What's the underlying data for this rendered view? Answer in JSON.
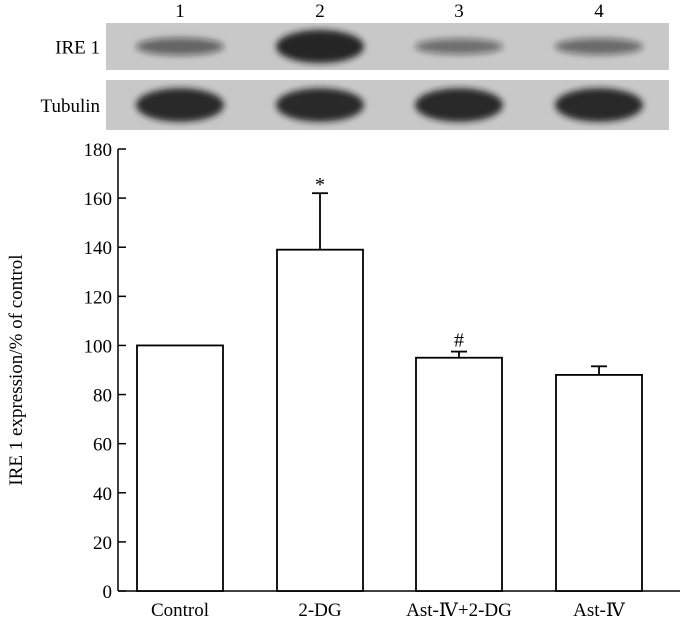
{
  "blot": {
    "lanes": [
      "1",
      "2",
      "3",
      "4"
    ],
    "rows": [
      {
        "label": "IRE 1",
        "band_intensity": [
          0.55,
          0.92,
          0.5,
          0.52
        ],
        "band_thickness": [
          0.45,
          0.85,
          0.4,
          0.42
        ]
      },
      {
        "label": "Tubulin",
        "band_intensity": [
          0.9,
          0.9,
          0.9,
          0.9
        ],
        "band_thickness": [
          0.8,
          0.8,
          0.8,
          0.8
        ]
      }
    ],
    "colors": {
      "background": "#c8c8c8",
      "band": "#141414"
    }
  },
  "chart_data": {
    "type": "bar",
    "categories": [
      "Control",
      "2-DG",
      "Ast-Ⅳ+2-DG",
      "Ast-Ⅳ"
    ],
    "values": [
      100,
      139,
      95,
      88
    ],
    "errors": [
      0,
      23,
      2.5,
      3.5
    ],
    "annotations": [
      "",
      "*",
      "#",
      ""
    ],
    "ylabel": "IRE 1 expression/% of control",
    "xlabel": "",
    "title": "",
    "ylim": [
      0,
      180
    ],
    "yticks": [
      "0",
      "20",
      "40",
      "60",
      "80",
      "100",
      "120",
      "140",
      "160",
      "180"
    ],
    "grid": false,
    "bar_fill": "#ffffff",
    "bar_stroke": "#000000"
  }
}
